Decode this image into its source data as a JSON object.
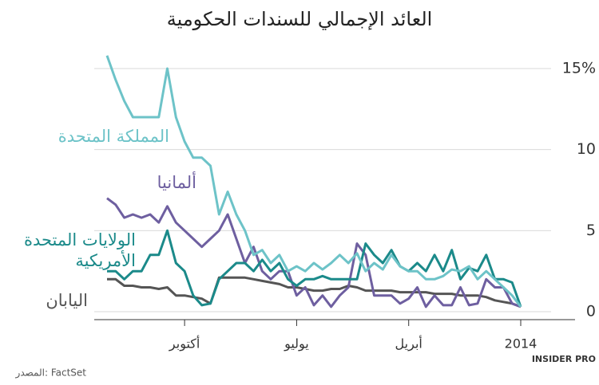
{
  "chart_data": {
    "type": "line",
    "title": "العائد الإجمالي للسندات الحكومية",
    "source": "المصدر: FactSet",
    "brand": "INSIDER PRO",
    "x_reversed": true,
    "categories": [
      "2014",
      null,
      null,
      null,
      null,
      null,
      null,
      null,
      null,
      null,
      null,
      null,
      null,
      "أبريل",
      null,
      null,
      null,
      null,
      null,
      null,
      null,
      null,
      null,
      null,
      null,
      null,
      "يوليو",
      null,
      null,
      null,
      null,
      null,
      null,
      null,
      null,
      null,
      null,
      null,
      null,
      "أكتوبر",
      null,
      null,
      null,
      null,
      null,
      null,
      null,
      null,
      null
    ],
    "ylim": [
      0,
      15
    ],
    "yticks": [
      0,
      5,
      10,
      {
        "value": 15,
        "label": "15%"
      }
    ],
    "grid": true,
    "series": [
      {
        "name": "اليابان",
        "color": "#555555",
        "values": [
          0.3,
          0.5,
          0.6,
          0.7,
          0.9,
          1.0,
          1.0,
          1.0,
          1.1,
          1.1,
          1.1,
          1.2,
          1.2,
          1.2,
          1.2,
          1.3,
          1.3,
          1.3,
          1.3,
          1.5,
          1.6,
          1.4,
          1.4,
          1.3,
          1.3,
          1.4,
          1.5,
          1.5,
          1.7,
          1.8,
          1.9,
          2.0,
          2.1,
          2.1,
          2.1,
          2.1,
          0.5,
          0.8,
          0.9,
          1.0,
          1.0,
          1.5,
          1.4,
          1.5,
          1.5,
          1.6,
          1.6,
          2.0,
          2.0
        ]
      },
      {
        "name": "ألمانيا",
        "color": "#6e5fa0",
        "values": [
          0.3,
          0.5,
          1.5,
          1.5,
          2.0,
          0.5,
          0.4,
          1.5,
          0.4,
          0.4,
          1.0,
          0.3,
          1.5,
          0.8,
          0.5,
          1.0,
          1.0,
          1.0,
          3.5,
          4.2,
          1.5,
          1.0,
          0.3,
          1.0,
          0.4,
          1.5,
          1.0,
          2.5,
          2.5,
          2.0,
          2.5,
          4.0,
          3.0,
          4.5,
          6.0,
          5.0,
          4.5,
          4.0,
          4.5,
          5.0,
          5.5,
          6.5,
          5.5,
          6.0,
          5.8,
          6.0,
          5.8,
          6.6,
          7.0
        ]
      },
      {
        "name": "الولايات المتحدة الأمريكية",
        "color": "#1b8a8a",
        "values": [
          0.3,
          1.8,
          2.0,
          2.0,
          3.5,
          2.5,
          2.7,
          2.0,
          3.8,
          2.5,
          3.5,
          2.5,
          3.0,
          2.5,
          2.8,
          3.8,
          3.0,
          3.5,
          4.2,
          2.0,
          2.0,
          2.0,
          2.0,
          2.2,
          2.0,
          2.0,
          1.6,
          2.0,
          3.0,
          2.5,
          3.2,
          2.5,
          3.0,
          3.0,
          2.5,
          2.0,
          0.5,
          0.4,
          1.0,
          2.5,
          3.0,
          5.0,
          3.5,
          3.5,
          2.5,
          2.5,
          2.0,
          2.5,
          2.5
        ]
      },
      {
        "name": "المملكة المتحدة",
        "color": "#6dc3c8",
        "values": [
          0.3,
          1.0,
          1.5,
          2.0,
          2.5,
          2.0,
          2.8,
          2.5,
          2.6,
          2.2,
          2.0,
          2.0,
          2.5,
          2.5,
          2.8,
          3.5,
          2.6,
          3.0,
          2.5,
          3.6,
          3.0,
          3.5,
          3.0,
          2.6,
          3.0,
          2.5,
          2.8,
          2.5,
          3.5,
          3.0,
          3.8,
          3.5,
          5.0,
          6.0,
          7.4,
          6.0,
          9.0,
          9.5,
          9.5,
          10.5,
          12.0,
          15.0,
          12.0,
          12.0,
          12.0,
          12.0,
          13.0,
          14.3,
          15.8
        ]
      }
    ]
  }
}
